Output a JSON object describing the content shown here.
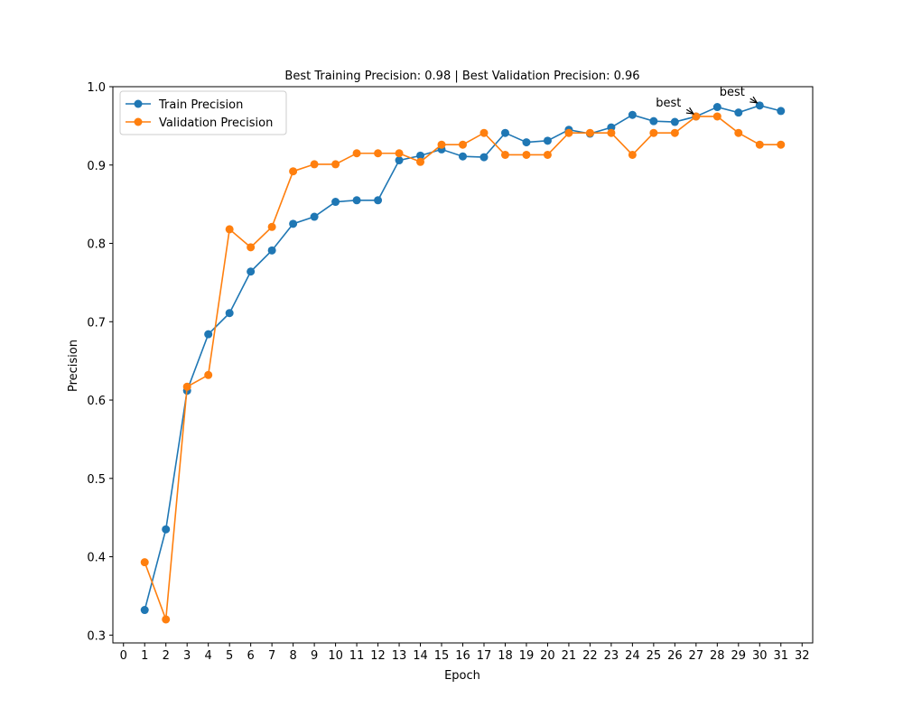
{
  "chart_data": {
    "type": "line",
    "title": "Best Training Precision: 0.98 | Best Validation Precision: 0.96",
    "xlabel": "Epoch",
    "ylabel": "Precision",
    "xlim": [
      -0.5,
      32.5
    ],
    "ylim": [
      0.29,
      1.0
    ],
    "x_ticks": [
      0,
      1,
      2,
      3,
      4,
      5,
      6,
      7,
      8,
      9,
      10,
      11,
      12,
      13,
      14,
      15,
      16,
      17,
      18,
      19,
      20,
      21,
      22,
      23,
      24,
      25,
      26,
      27,
      28,
      29,
      30,
      31,
      32
    ],
    "y_ticks": [
      0.3,
      0.4,
      0.5,
      0.6,
      0.7,
      0.8,
      0.9,
      1.0
    ],
    "y_tick_labels": [
      "0.3",
      "0.4",
      "0.5",
      "0.6",
      "0.7",
      "0.8",
      "0.9",
      "1.0"
    ],
    "grid": false,
    "legend_position": "upper left",
    "x": [
      1,
      2,
      3,
      4,
      5,
      6,
      7,
      8,
      9,
      10,
      11,
      12,
      13,
      14,
      15,
      16,
      17,
      18,
      19,
      20,
      21,
      22,
      23,
      24,
      25,
      26,
      27,
      28,
      29,
      30,
      31
    ],
    "series": [
      {
        "name": "Train Precision",
        "color": "#1f77b4",
        "marker": "circle",
        "values": [
          0.332,
          0.435,
          0.612,
          0.684,
          0.711,
          0.764,
          0.791,
          0.825,
          0.834,
          0.853,
          0.855,
          0.855,
          0.906,
          0.912,
          0.92,
          0.911,
          0.91,
          0.941,
          0.929,
          0.931,
          0.945,
          0.94,
          0.948,
          0.964,
          0.956,
          0.955,
          0.962,
          0.974,
          0.967,
          0.976,
          0.969
        ]
      },
      {
        "name": "Validation Precision",
        "color": "#ff7f0e",
        "marker": "circle",
        "values": [
          0.393,
          0.32,
          0.617,
          0.632,
          0.818,
          0.795,
          0.821,
          0.892,
          0.901,
          0.901,
          0.915,
          0.915,
          0.915,
          0.904,
          0.926,
          0.926,
          0.941,
          0.913,
          0.913,
          0.913,
          0.941,
          0.941,
          0.941,
          0.913,
          0.941,
          0.941,
          0.962,
          0.962,
          0.941,
          0.926,
          0.926
        ]
      }
    ],
    "annotations": [
      {
        "text": "best",
        "point": [
          30,
          0.976
        ],
        "text_at": [
          28.7,
          0.993
        ]
      },
      {
        "text": "best",
        "point": [
          27,
          0.962
        ],
        "text_at": [
          25.7,
          0.979
        ]
      }
    ]
  }
}
